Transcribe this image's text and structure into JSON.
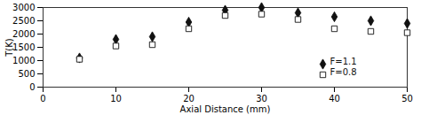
{
  "chart_data": {
    "type": "scatter",
    "xlabel": "Axial Distance (mm)",
    "ylabel": "T(K)",
    "x": [
      5,
      10,
      15,
      20,
      25,
      30,
      35,
      40,
      45,
      50
    ],
    "series": [
      {
        "name": "F=1.1",
        "color": "#111111",
        "marker": "diamond",
        "values": [
          1100,
          1800,
          1900,
          2450,
          2900,
          3000,
          2800,
          2650,
          2500,
          2400
        ]
      },
      {
        "name": "F=0.8",
        "color": "#111111",
        "marker": "open_square",
        "values": [
          1050,
          1550,
          1600,
          2200,
          2700,
          2750,
          2550,
          2200,
          2100,
          2050
        ]
      }
    ],
    "xlim": [
      0,
      50
    ],
    "ylim": [
      0,
      3000
    ],
    "xticks": [
      0,
      10,
      20,
      30,
      40,
      50
    ],
    "yticks": [
      0,
      500,
      1000,
      1500,
      2000,
      2500,
      3000
    ],
    "legend": "lower right"
  }
}
